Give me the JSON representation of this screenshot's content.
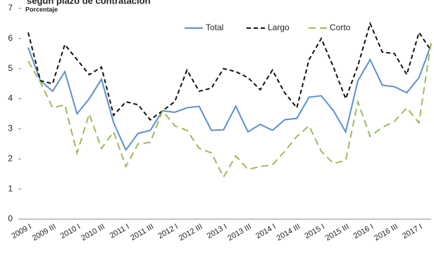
{
  "chart_data": {
    "type": "line",
    "title": "según plazo de contratación",
    "y_label": "Porcentaje",
    "categories": [
      "2009 I",
      null,
      "2009 III",
      null,
      "2010 I",
      null,
      "2010 III",
      null,
      "2011 I",
      null,
      "2011 III",
      null,
      "2012 I",
      null,
      "2012 III",
      null,
      "2013 I",
      null,
      "2013 III",
      null,
      "2014 I",
      null,
      "2014 III",
      null,
      "2015 I",
      null,
      "2015 III",
      null,
      "2016 I",
      null,
      "2016 III",
      null,
      "2017 I",
      null
    ],
    "series": [
      {
        "name": "Total",
        "color": "#5b8fd0",
        "dash": "none",
        "values": [
          5.7,
          4.6,
          4.25,
          4.9,
          3.5,
          4.0,
          4.65,
          3.2,
          2.3,
          2.85,
          2.95,
          3.6,
          3.55,
          3.7,
          3.75,
          2.95,
          2.97,
          3.75,
          2.9,
          3.15,
          2.95,
          3.3,
          3.35,
          4.05,
          4.1,
          3.6,
          2.9,
          4.6,
          5.3,
          4.45,
          4.4,
          4.2,
          4.7,
          5.8
        ]
      },
      {
        "name": "Largo",
        "color": "#111111",
        "dash": "6 4",
        "values": [
          6.2,
          4.6,
          4.5,
          5.8,
          5.3,
          4.8,
          5.05,
          3.45,
          3.9,
          3.8,
          3.3,
          3.6,
          3.9,
          4.95,
          4.25,
          4.35,
          5.0,
          4.9,
          4.7,
          4.3,
          4.95,
          4.2,
          3.7,
          5.3,
          6.0,
          5.05,
          4.0,
          5.1,
          6.5,
          5.55,
          5.5,
          4.8,
          6.2,
          5.6
        ]
      },
      {
        "name": "Corto",
        "color": "#9bbb59",
        "dash": "10 6",
        "values": [
          5.25,
          4.55,
          3.7,
          3.8,
          2.2,
          3.5,
          2.35,
          2.9,
          1.75,
          2.5,
          2.55,
          3.6,
          3.1,
          2.95,
          2.35,
          2.2,
          1.4,
          2.1,
          1.65,
          1.75,
          1.8,
          2.25,
          2.75,
          3.1,
          2.25,
          1.85,
          1.95,
          3.9,
          2.75,
          3.05,
          3.25,
          3.7,
          3.2,
          5.9
        ]
      }
    ],
    "ylim": [
      0,
      7
    ],
    "yticks": [
      0,
      1,
      2,
      3,
      4,
      5,
      6,
      7
    ]
  }
}
